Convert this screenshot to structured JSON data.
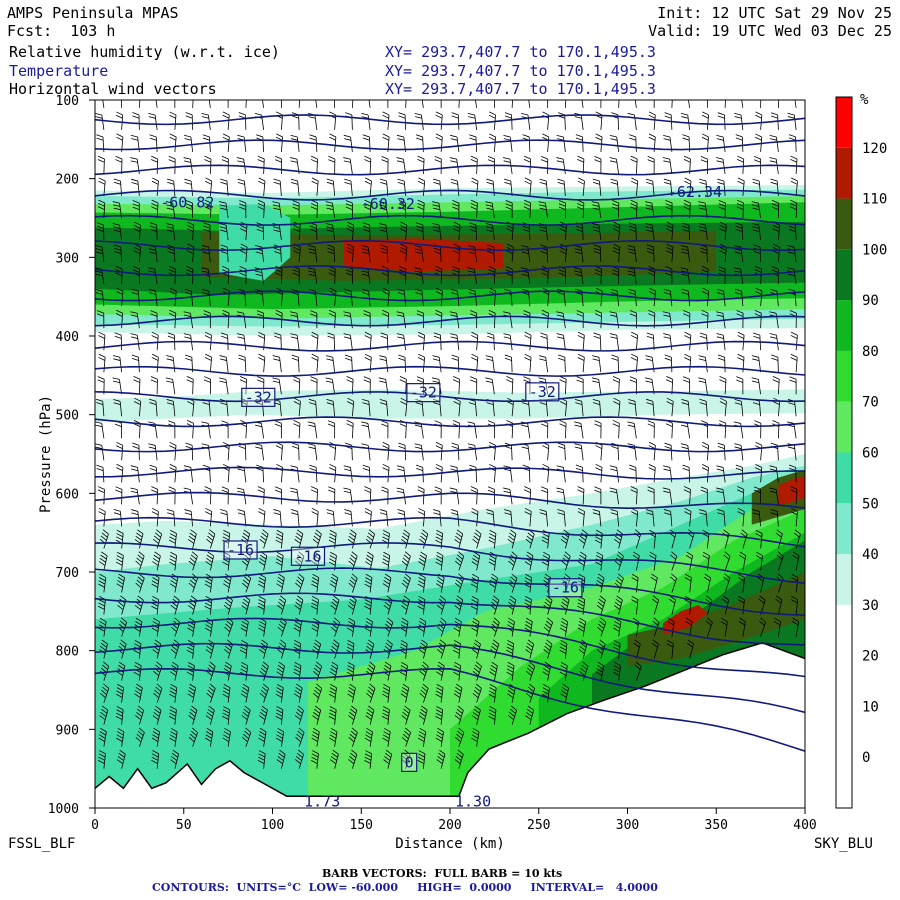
{
  "header": {
    "model": "AMPS Peninsula MPAS",
    "fcst": "Fcst:  103 h",
    "init": "Init: 12 UTC Sat 29 Nov 25",
    "valid": "Valid: 19 UTC Wed 03 Dec 25",
    "fields": [
      {
        "name": "Relative humidity (w.r.t. ice)",
        "xy": "XY= 293.7,407.7 to 170.1,495.3"
      },
      {
        "name": "Temperature",
        "xy": "XY= 293.7,407.7 to 170.1,495.3"
      },
      {
        "name": "Horizontal wind vectors",
        "xy": "XY= 293.7,407.7 to 170.1,495.3"
      }
    ]
  },
  "footer": {
    "barb": "BARB VECTORS:  FULL BARB = 10 kts",
    "contours": "CONTOURS:  UNITS=°C  LOW= -60.000     HIGH=  0.0000     INTERVAL=   4.0000"
  },
  "endpoints": {
    "left": "FSSL_BLF",
    "right": "SKY_BLU"
  },
  "chart_data": {
    "type": "heatmap",
    "xlabel": "Distance (km)",
    "ylabel": "Pressure (hPa)",
    "xlim": [
      0,
      400
    ],
    "ylim": [
      1000,
      100
    ],
    "xticks": [
      0,
      50,
      100,
      150,
      200,
      250,
      300,
      350,
      400
    ],
    "yticks": [
      100,
      200,
      300,
      400,
      500,
      600,
      700,
      800,
      900,
      1000
    ],
    "colorbar": {
      "unit": "%",
      "levels": [
        0,
        10,
        20,
        30,
        40,
        50,
        60,
        70,
        80,
        90,
        100,
        110,
        120
      ],
      "colors": [
        "#ffffff",
        "#ffffff",
        "#ffffff",
        "#ffffff",
        "#c8f5e8",
        "#80e8cc",
        "#40dca8",
        "#60e860",
        "#30dc30",
        "#10b820",
        "#0a7820",
        "#3a5a10",
        "#b01a00",
        "#ff0000"
      ]
    },
    "temperature_labels": [
      {
        "x": 52,
        "p": 230,
        "text": "-60.82"
      },
      {
        "x": 165,
        "p": 232,
        "text": "-60.32"
      },
      {
        "x": 338,
        "p": 217,
        "text": "-62.34"
      },
      {
        "x": 92,
        "p": 478,
        "text": "-32"
      },
      {
        "x": 185,
        "p": 472,
        "text": "-32"
      },
      {
        "x": 252,
        "p": 471,
        "text": "-32"
      },
      {
        "x": 82,
        "p": 672,
        "text": "-16"
      },
      {
        "x": 120,
        "p": 680,
        "text": "-16"
      },
      {
        "x": 265,
        "p": 720,
        "text": "-16"
      },
      {
        "x": 177,
        "p": 942,
        "text": "0"
      },
      {
        "x": 128,
        "p": 992,
        "text": "1.73"
      },
      {
        "x": 213,
        "p": 992,
        "text": "1.30"
      }
    ],
    "terrain_surface": [
      [
        0,
        975
      ],
      [
        8,
        960
      ],
      [
        16,
        975
      ],
      [
        24,
        950
      ],
      [
        32,
        975
      ],
      [
        40,
        968
      ],
      [
        52,
        944
      ],
      [
        60,
        970
      ],
      [
        68,
        950
      ],
      [
        76,
        940
      ],
      [
        84,
        955
      ],
      [
        96,
        970
      ],
      [
        108,
        985
      ],
      [
        130,
        985
      ],
      [
        150,
        985
      ],
      [
        172,
        985
      ],
      [
        205,
        985
      ],
      [
        210,
        955
      ],
      [
        222,
        925
      ],
      [
        244,
        905
      ],
      [
        266,
        880
      ],
      [
        288,
        862
      ],
      [
        310,
        845
      ],
      [
        332,
        825
      ],
      [
        354,
        805
      ],
      [
        376,
        790
      ],
      [
        400,
        810
      ]
    ]
  }
}
